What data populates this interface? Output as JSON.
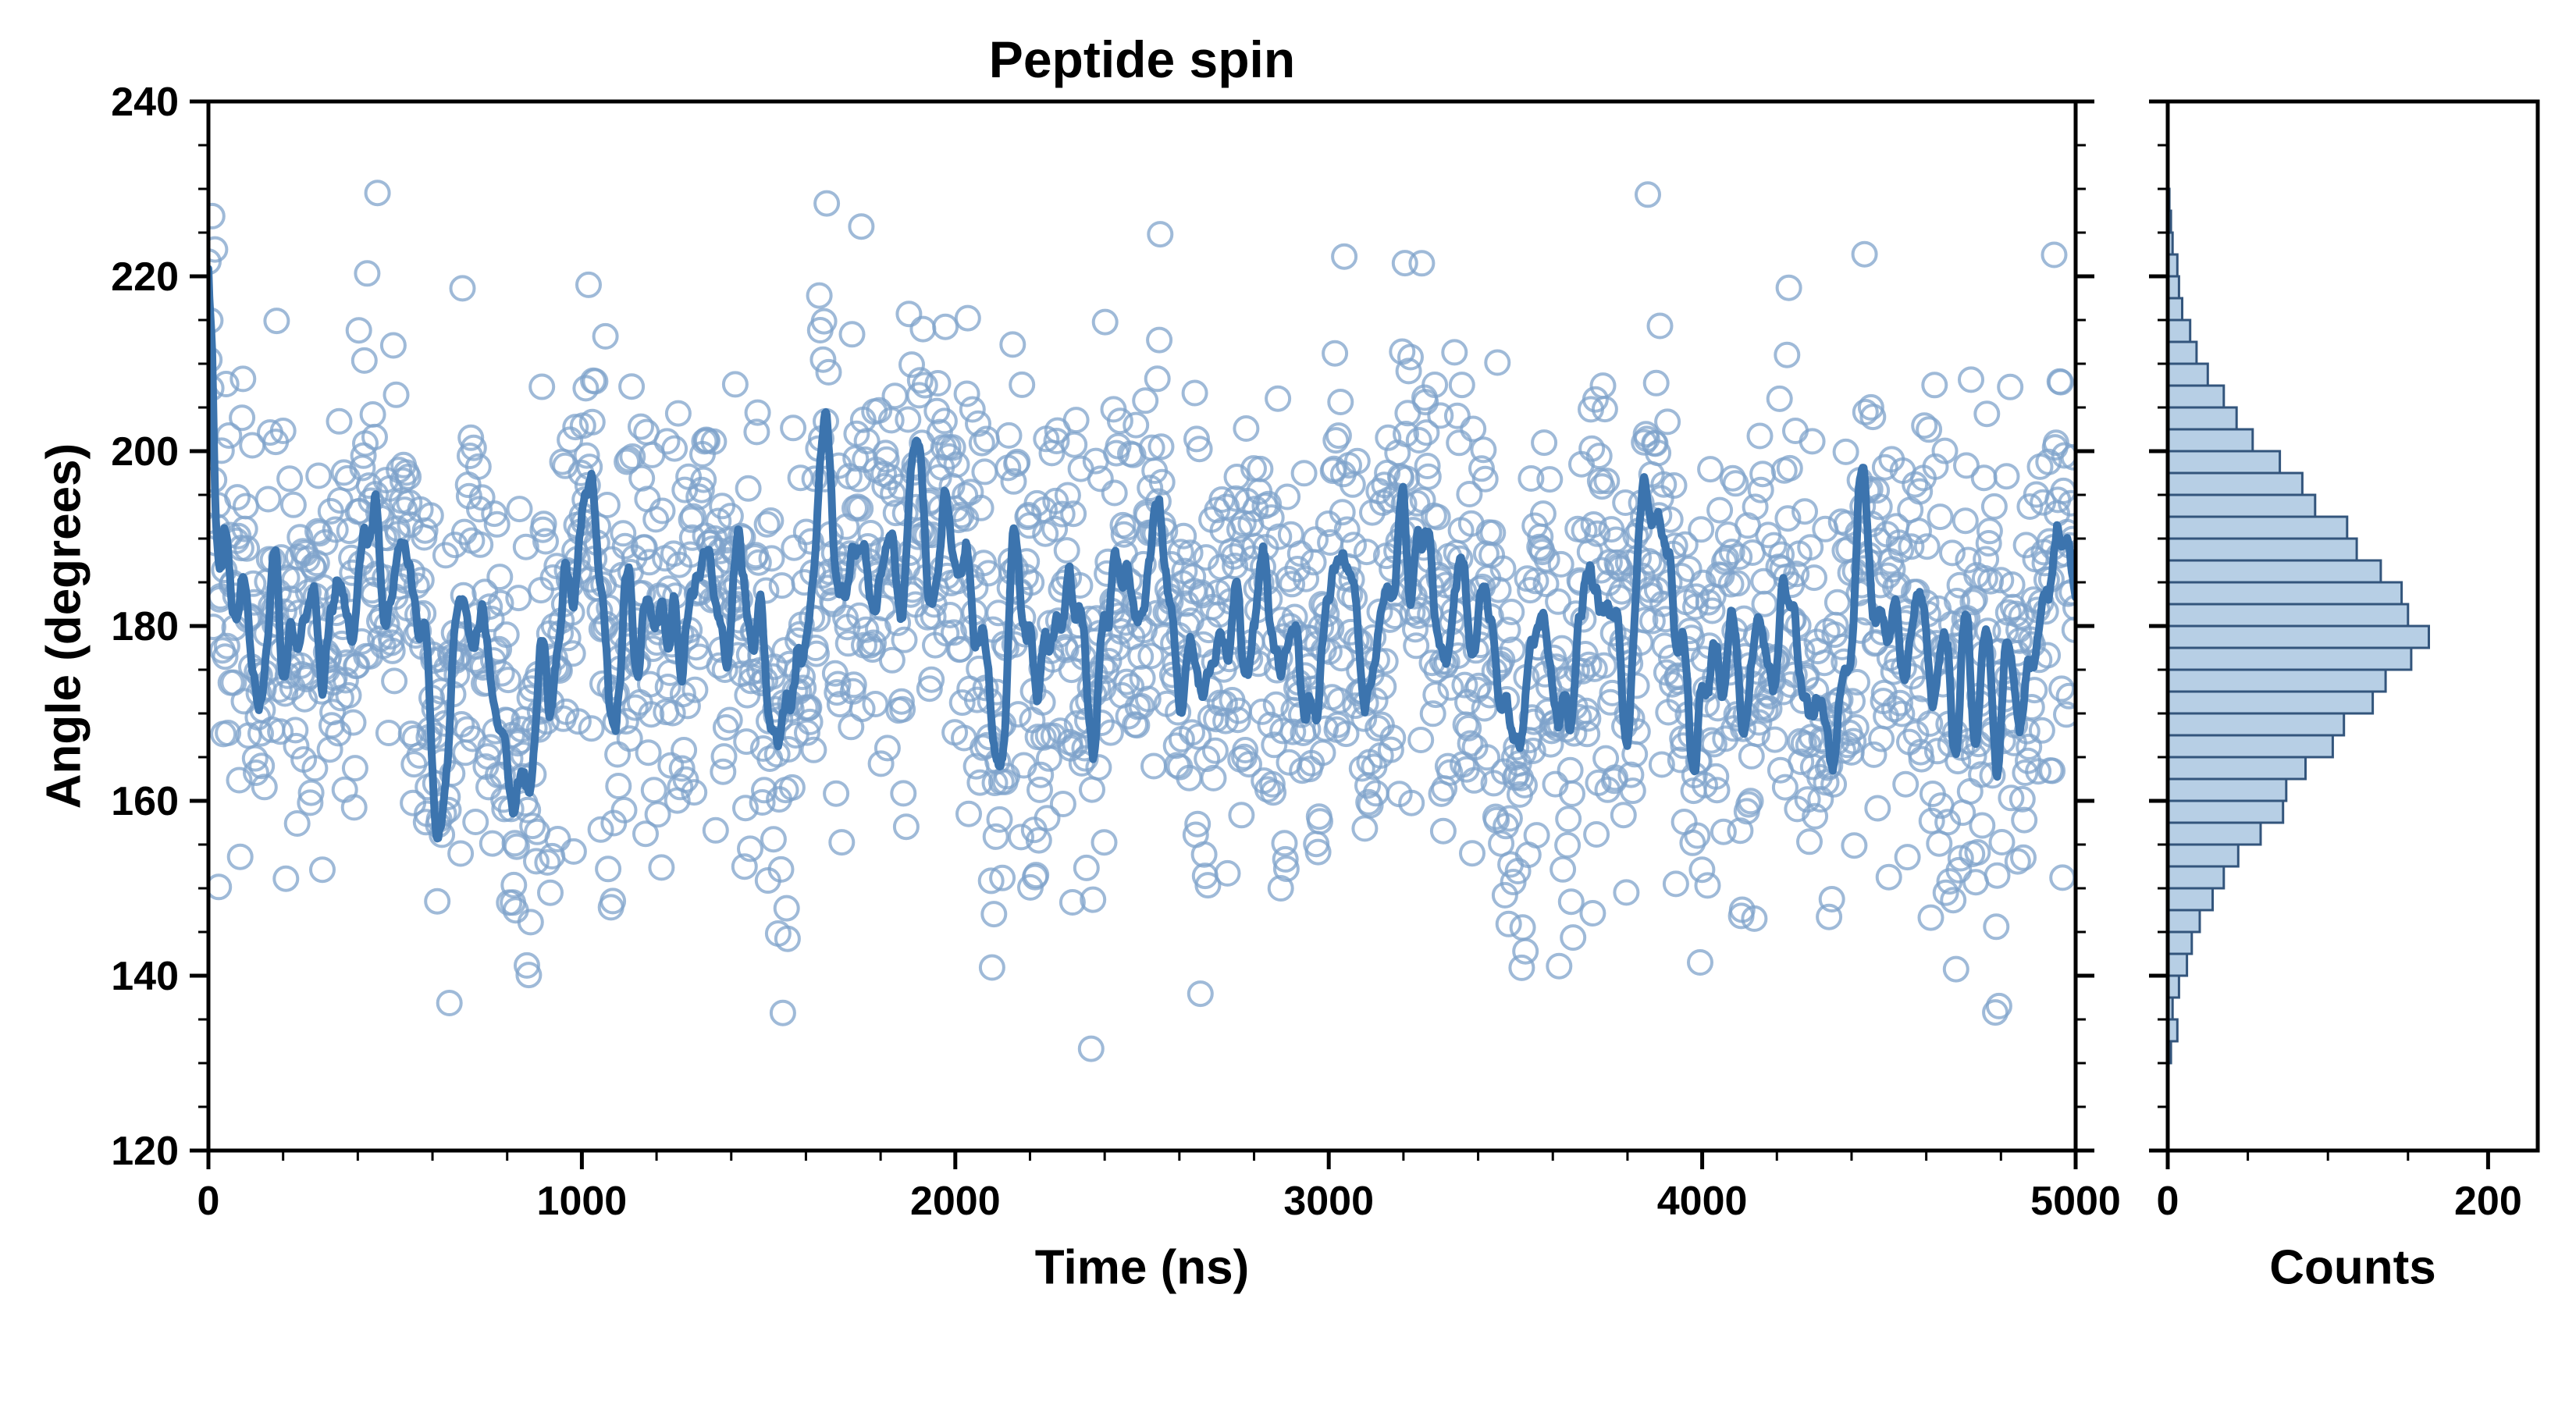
{
  "figure": {
    "background": "#ffffff"
  },
  "chart_data": {
    "type": "scatter",
    "title": "Peptide spin",
    "xlabel": "Time (ns)",
    "ylabel": "Angle (degrees)",
    "xlim": [
      0,
      5000
    ],
    "ylim": [
      120,
      240
    ],
    "xticks": [
      0,
      1000,
      2000,
      3000,
      4000,
      5000
    ],
    "yticks": [
      120,
      140,
      160,
      180,
      200,
      220,
      240
    ],
    "x_minor_step": 200,
    "y_minor_step": 5,
    "axis_color": "#000000",
    "grid": false,
    "legend": "none",
    "scatter": {
      "name": "angle-samples",
      "marker": "open-circle",
      "color": "#7fa3cb",
      "opacity": 0.75,
      "n_points": 2000,
      "mean": 179,
      "noise_sd": 12.5,
      "ar_phi": 0.92,
      "ar_sd": 3.8,
      "start_value": 236,
      "seed": 42
    },
    "rolling_mean": {
      "name": "running-average",
      "color": "#3c74ae",
      "window": 4,
      "linewidth": 10
    },
    "histogram": {
      "xlabel": "Counts",
      "xlim": [
        0,
        231
      ],
      "xticks": [
        0,
        200
      ],
      "x_minor_step": 50,
      "bin_start": 130,
      "bin_width": 2.5,
      "counts": [
        2,
        6,
        3,
        7,
        12,
        15,
        20,
        28,
        35,
        44,
        58,
        72,
        74,
        86,
        103,
        110,
        128,
        136,
        152,
        163,
        150,
        146,
        133,
        118,
        112,
        92,
        84,
        70,
        53,
        43,
        35,
        25,
        18,
        14,
        9,
        7,
        6,
        3,
        2,
        1
      ],
      "fill": "#b7cfe5",
      "edge": "#33557c"
    }
  }
}
